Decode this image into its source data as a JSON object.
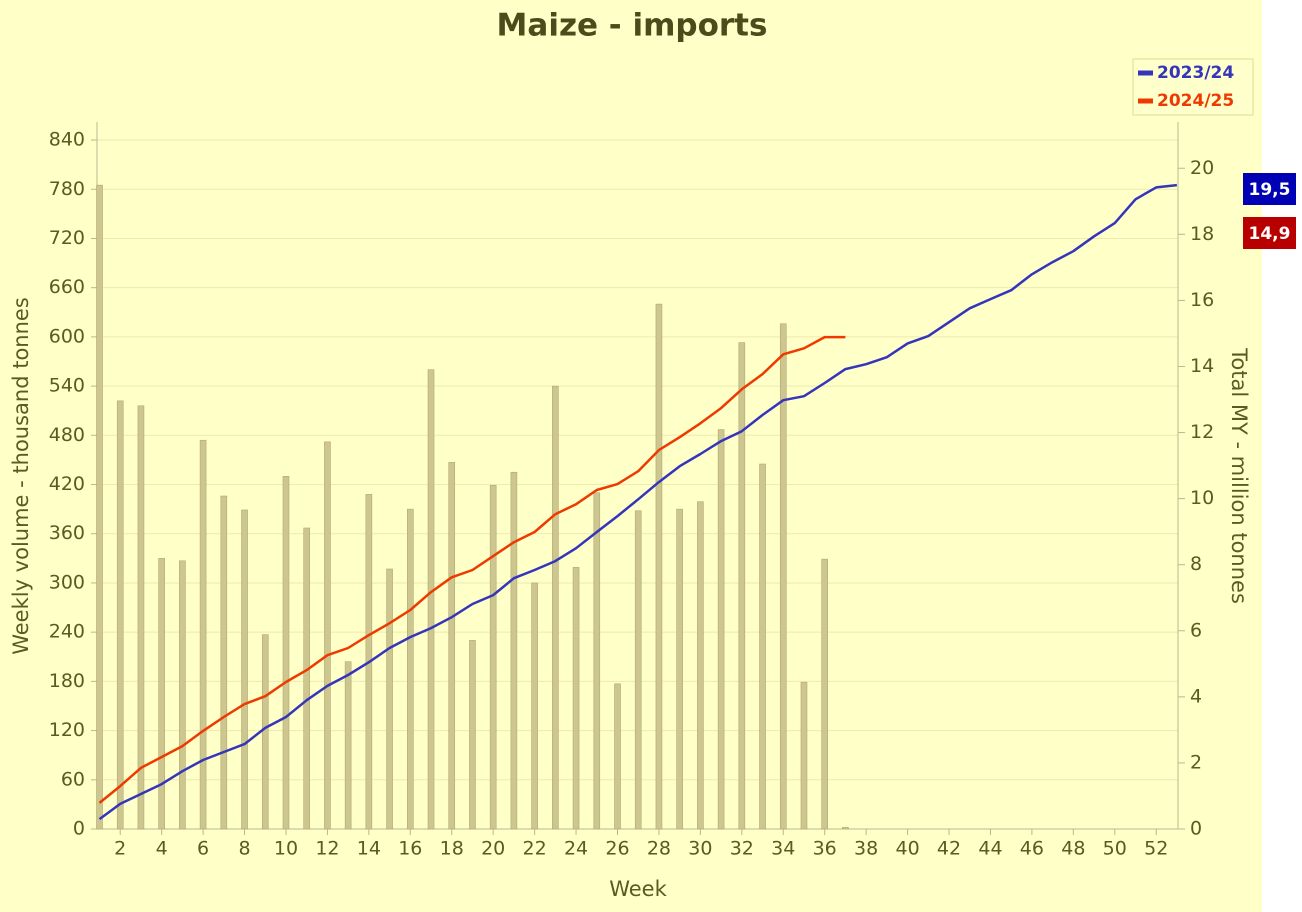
{
  "chart_data": {
    "type": "bar",
    "title": "Maize - imports",
    "xlabel": "Week",
    "ylabel": "Weekly volume - thousand tonnes",
    "y2label": "Total MY - million tonnes",
    "categories": [
      null,
      "2",
      null,
      "4",
      null,
      "6",
      null,
      "8",
      null,
      "10",
      null,
      "12",
      null,
      "14",
      null,
      "16",
      null,
      "18",
      null,
      "20",
      null,
      "22",
      null,
      "24",
      null,
      "26",
      null,
      "28",
      null,
      "30",
      null,
      "32",
      null,
      "34",
      null,
      "36",
      null,
      "38",
      null,
      "40",
      null,
      "42",
      null,
      "44",
      null,
      "46",
      null,
      "48",
      null,
      "50",
      null,
      "52",
      null
    ],
    "bar_color": "#cdc68e",
    "values": [
      785,
      522,
      516,
      330,
      327,
      474,
      406,
      389,
      237,
      430,
      367,
      472,
      204,
      408,
      317,
      390,
      560,
      447,
      230,
      419,
      435,
      300,
      540,
      319,
      410,
      177,
      388,
      640,
      390,
      399,
      487,
      593,
      445,
      616,
      179,
      329,
      2,
      0,
      0,
      0,
      0,
      0,
      0,
      0,
      0,
      0,
      0,
      0,
      0,
      0,
      0,
      0,
      0
    ],
    "series": [
      {
        "name": "2023/24",
        "color": "#3535bb",
        "axis": "y2",
        "end_label": "19,5",
        "end_color": "#0000b4",
        "values": [
          0.3,
          0.76,
          1.06,
          1.36,
          1.75,
          2.09,
          2.33,
          2.57,
          3.06,
          3.39,
          3.9,
          4.33,
          4.66,
          5.05,
          5.48,
          5.81,
          6.08,
          6.41,
          6.81,
          7.08,
          7.59,
          7.84,
          8.11,
          8.5,
          8.99,
          9.47,
          9.98,
          10.5,
          10.98,
          11.35,
          11.74,
          12.04,
          12.53,
          12.98,
          13.1,
          13.5,
          13.92,
          14.07,
          14.28,
          14.7,
          14.92,
          15.34,
          15.76,
          16.04,
          16.31,
          16.79,
          17.16,
          17.49,
          17.94,
          18.34,
          19.06,
          19.42,
          19.49
        ]
      },
      {
        "name": "2024/25",
        "color": "#ee3a00",
        "axis": "y2",
        "end_label": "14,9",
        "end_color": "#b80000",
        "values": [
          0.79,
          1.3,
          1.85,
          2.18,
          2.51,
          2.97,
          3.39,
          3.78,
          4.02,
          4.45,
          4.81,
          5.26,
          5.48,
          5.87,
          6.23,
          6.63,
          7.17,
          7.62,
          7.84,
          8.26,
          8.68,
          8.99,
          9.53,
          9.83,
          10.26,
          10.44,
          10.83,
          11.47,
          11.86,
          12.28,
          12.74,
          13.31,
          13.77,
          14.37,
          14.55,
          14.89,
          14.89,
          null,
          null,
          null,
          null,
          null,
          null,
          null,
          null,
          null,
          null,
          null,
          null,
          null,
          null,
          null,
          null
        ]
      }
    ],
    "ylim": [
      0,
      862
    ],
    "yticks": [
      0,
      60,
      120,
      180,
      240,
      300,
      360,
      420,
      480,
      540,
      600,
      660,
      720,
      780,
      840
    ],
    "y2lim": [
      0,
      21.4
    ],
    "y2ticks": [
      0,
      2,
      4,
      6,
      8,
      10,
      12,
      14,
      16,
      18,
      20
    ],
    "grid": true,
    "legend": "top-right"
  }
}
